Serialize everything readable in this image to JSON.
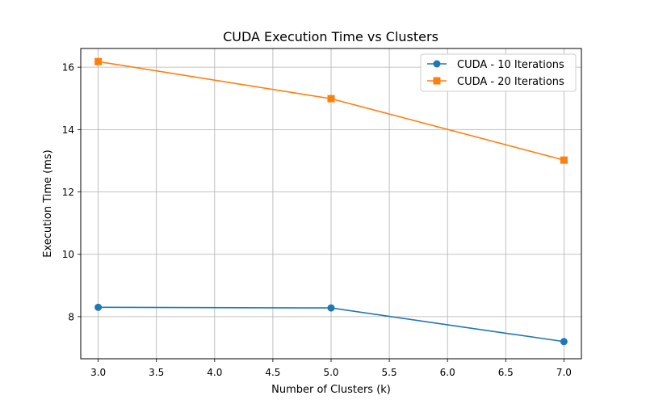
{
  "chart_data": {
    "type": "line",
    "title": "CUDA Execution Time vs Clusters",
    "xlabel": "Number of Clusters (k)",
    "ylabel": "Execution Time (ms)",
    "xlim": [
      2.85,
      7.15
    ],
    "ylim": [
      6.65,
      16.6
    ],
    "xticks": [
      3.0,
      3.5,
      4.0,
      4.5,
      5.0,
      5.5,
      6.0,
      6.5,
      7.0
    ],
    "xtick_labels": [
      "3.0",
      "3.5",
      "4.0",
      "4.5",
      "5.0",
      "5.5",
      "6.0",
      "6.5",
      "7.0"
    ],
    "yticks": [
      8,
      10,
      12,
      14,
      16
    ],
    "ytick_labels": [
      "8",
      "10",
      "12",
      "14",
      "16"
    ],
    "grid": true,
    "legend_position": "top-right",
    "series": [
      {
        "name": "CUDA - 10 Iterations",
        "color": "#1f77b4",
        "marker": "circle",
        "x": [
          3,
          5,
          7
        ],
        "y": [
          8.3,
          8.28,
          7.2
        ]
      },
      {
        "name": "CUDA - 20 Iterations",
        "color": "#ff7f0e",
        "marker": "square",
        "x": [
          3,
          5,
          7
        ],
        "y": [
          16.18,
          14.99,
          13.02
        ]
      }
    ]
  }
}
